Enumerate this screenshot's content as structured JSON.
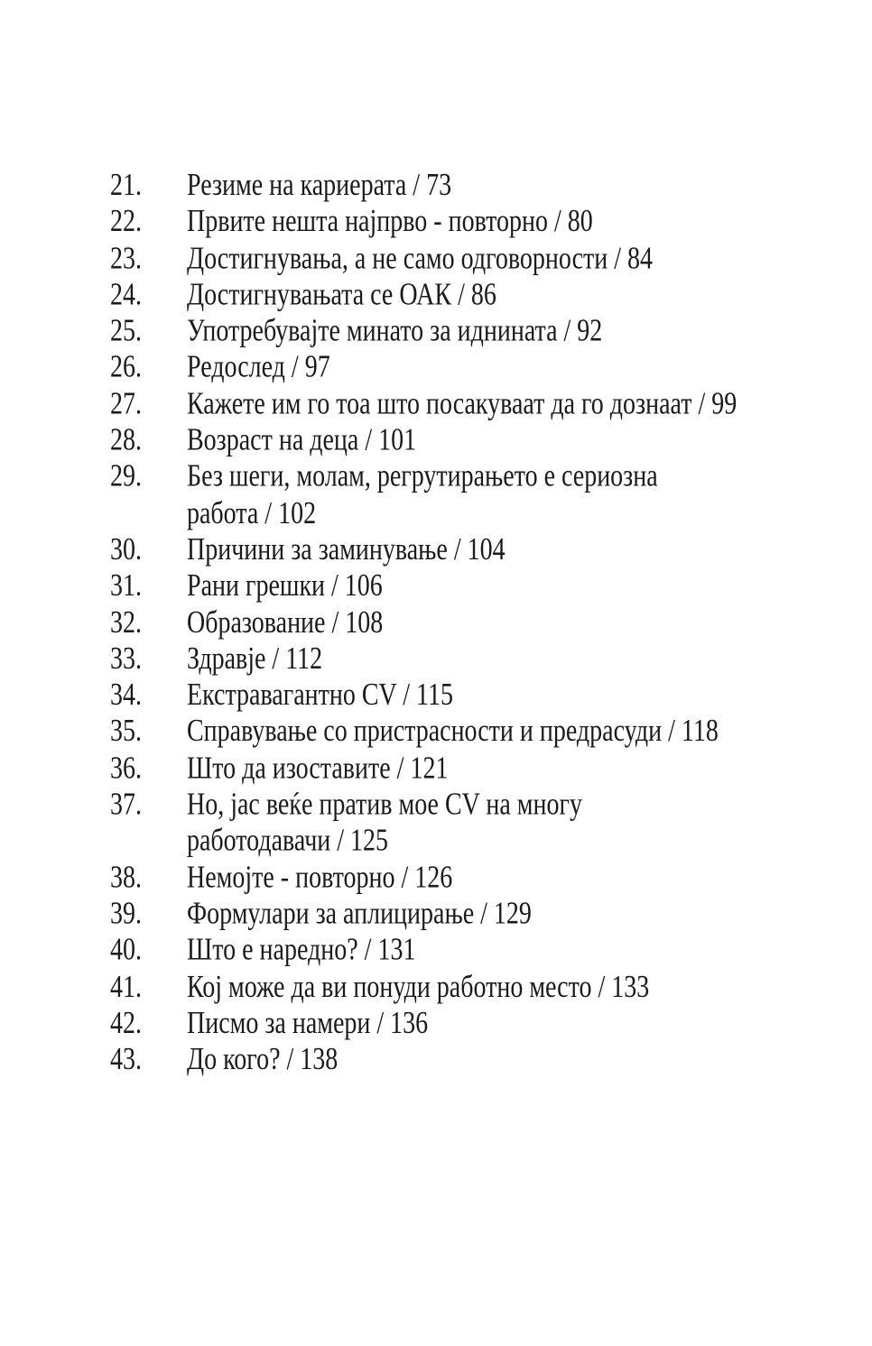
{
  "page": {
    "background_color": "#ffffff",
    "text_color": "#1a1a1a"
  },
  "toc": {
    "entries": [
      {
        "number": "21.",
        "lines": [
          "Резиме на кариерата / 73"
        ]
      },
      {
        "number": "22.",
        "lines": [
          "Првите нешта најпрво - повторно / 80"
        ]
      },
      {
        "number": "23.",
        "lines": [
          "Достигнувања, а не само одговорности / 84"
        ]
      },
      {
        "number": "24.",
        "lines": [
          "Достигнувањата се ОАК / 86"
        ]
      },
      {
        "number": "25.",
        "lines": [
          "Употребувајте минато за иднината / 92"
        ]
      },
      {
        "number": "26.",
        "lines": [
          "Редослед / 97"
        ]
      },
      {
        "number": "27.",
        "lines": [
          "Кажете им го тоа што посакуваат да го дознаат / 99"
        ]
      },
      {
        "number": "28.",
        "lines": [
          "Возраст на деца / 101"
        ]
      },
      {
        "number": "29.",
        "lines": [
          "Без шеги, молам, регрутирањето е сериозна",
          "работа / 102"
        ]
      },
      {
        "number": "30.",
        "lines": [
          "Причини за заминување / 104"
        ]
      },
      {
        "number": "31.",
        "lines": [
          "Рани грешки / 106"
        ]
      },
      {
        "number": "32.",
        "lines": [
          "Образование / 108"
        ]
      },
      {
        "number": "33.",
        "lines": [
          "Здравје / 112"
        ]
      },
      {
        "number": "34.",
        "lines": [
          "Екстравагантно CV / 115"
        ]
      },
      {
        "number": "35.",
        "lines": [
          "Справување со пристрасности и предрасуди / 118"
        ]
      },
      {
        "number": "36.",
        "lines": [
          "Што да изоставите / 121"
        ]
      },
      {
        "number": "37.",
        "lines": [
          "Но, јас веќе пратив мое CV на многу",
          "работодавачи / 125"
        ]
      },
      {
        "number": "38.",
        "lines": [
          "Немојте - повторно / 126"
        ]
      },
      {
        "number": "39.",
        "lines": [
          "Формулари за аплицирање / 129"
        ]
      },
      {
        "number": "40.",
        "lines": [
          "Што е наредно? / 131"
        ]
      },
      {
        "number": "41.",
        "lines": [
          "Кој може да ви понуди работно место / 133"
        ]
      },
      {
        "number": "42.",
        "lines": [
          "Писмо за намери / 136"
        ]
      },
      {
        "number": "43.",
        "lines": [
          "До кого? / 138"
        ]
      }
    ]
  }
}
